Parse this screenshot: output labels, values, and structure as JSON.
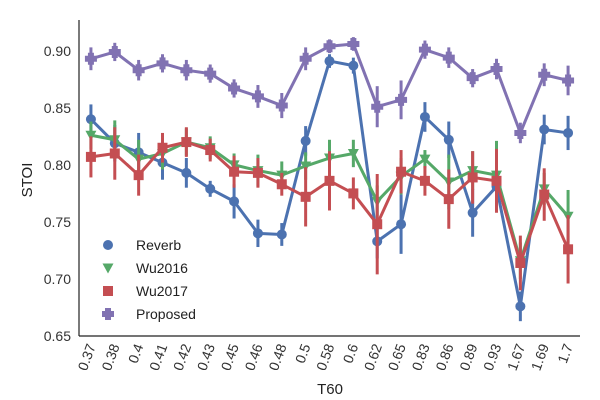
{
  "chart_data": {
    "type": "line",
    "title": "",
    "xlabel": "T60",
    "ylabel": "STOI",
    "ylim": [
      0.65,
      0.93
    ],
    "yticks": [
      "0.65",
      "0.70",
      "0.75",
      "0.80",
      "0.85",
      "0.90"
    ],
    "categories": [
      "0.37",
      "0.38",
      "0.4",
      "0.41",
      "0.42",
      "0.43",
      "0.45",
      "0.46",
      "0.48",
      "0.5",
      "0.58",
      "0.6",
      "0.62",
      "0.65",
      "0.83",
      "0.86",
      "0.89",
      "0.93",
      "1.67",
      "1.69",
      "1.7"
    ],
    "legend_position": "lower-left",
    "series": [
      {
        "name": "Reverb",
        "color": "#4c72b0",
        "marker": "circle",
        "values": [
          0.84,
          0.819,
          0.811,
          0.802,
          0.793,
          0.779,
          0.768,
          0.74,
          0.739,
          0.821,
          0.891,
          0.887,
          0.733,
          0.748,
          0.842,
          0.822,
          0.758,
          0.781,
          0.676,
          0.831,
          0.828
        ],
        "err": [
          0.013,
          0.016,
          0.017,
          0.015,
          0.013,
          0.007,
          0.015,
          0.012,
          0.01,
          0.013,
          0.006,
          0.007,
          0.015,
          0.026,
          0.013,
          0.016,
          0.021,
          0.014,
          0.013,
          0.013,
          0.015
        ]
      },
      {
        "name": "Wu2016",
        "color": "#55a868",
        "marker": "triangle-down",
        "values": [
          0.826,
          0.822,
          0.805,
          0.81,
          0.82,
          0.815,
          0.8,
          0.795,
          0.791,
          0.799,
          0.806,
          0.81,
          0.768,
          0.79,
          0.805,
          0.785,
          0.795,
          0.791,
          0.716,
          0.779,
          0.755
        ],
        "err": [
          0.012,
          0.017,
          0.017,
          0.014,
          0.012,
          0.01,
          0.01,
          0.014,
          0.012,
          0.012,
          0.016,
          0.012,
          0.014,
          0.016,
          0.008,
          0.024,
          0.017,
          0.03,
          0.016,
          0.014,
          0.023
        ]
      },
      {
        "name": "Wu2017",
        "color": "#c44e52",
        "marker": "square",
        "values": [
          0.807,
          0.81,
          0.791,
          0.815,
          0.82,
          0.813,
          0.794,
          0.793,
          0.783,
          0.772,
          0.786,
          0.775,
          0.748,
          0.794,
          0.786,
          0.77,
          0.789,
          0.786,
          0.714,
          0.774,
          0.726
        ],
        "err": [
          0.018,
          0.023,
          0.018,
          0.013,
          0.013,
          0.01,
          0.014,
          0.013,
          0.01,
          0.026,
          0.026,
          0.014,
          0.044,
          0.019,
          0.013,
          0.026,
          0.023,
          0.028,
          0.024,
          0.023,
          0.03
        ]
      },
      {
        "name": "Proposed",
        "color": "#8172b2",
        "marker": "plus",
        "values": [
          0.893,
          0.899,
          0.883,
          0.889,
          0.883,
          0.88,
          0.867,
          0.86,
          0.852,
          0.893,
          0.904,
          0.906,
          0.851,
          0.857,
          0.901,
          0.894,
          0.876,
          0.884,
          0.828,
          0.879,
          0.874
        ],
        "err": [
          0.01,
          0.008,
          0.009,
          0.008,
          0.009,
          0.008,
          0.008,
          0.01,
          0.011,
          0.01,
          0.006,
          0.006,
          0.018,
          0.017,
          0.008,
          0.009,
          0.008,
          0.009,
          0.009,
          0.01,
          0.013
        ]
      }
    ]
  }
}
